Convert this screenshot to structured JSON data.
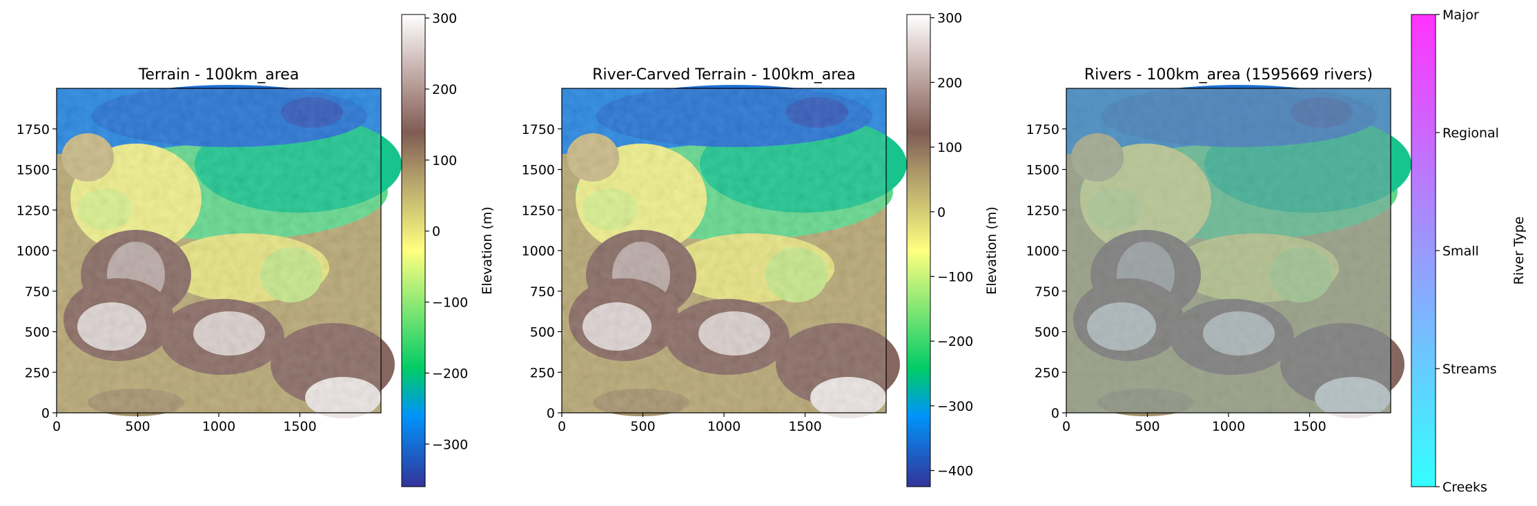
{
  "chart_data": [
    {
      "type": "heatmap",
      "title": "Terrain - 100km_area",
      "xlim": [
        0,
        2000
      ],
      "ylim": [
        0,
        2000
      ],
      "xticks": [
        0,
        500,
        1000,
        1500
      ],
      "yticks": [
        0,
        250,
        500,
        750,
        1000,
        1250,
        1500,
        1750
      ],
      "colormap": "terrain",
      "colorbar": {
        "label": "Elevation (m)",
        "range": [
          -360,
          305
        ],
        "ticks": [
          -300,
          -200,
          -100,
          0,
          100,
          200,
          300
        ]
      }
    },
    {
      "type": "heatmap",
      "title": "River-Carved Terrain - 100km_area",
      "xlim": [
        0,
        2000
      ],
      "ylim": [
        0,
        2000
      ],
      "xticks": [
        0,
        500,
        1000,
        1500
      ],
      "yticks": [
        0,
        250,
        500,
        750,
        1000,
        1250,
        1500,
        1750
      ],
      "colormap": "terrain",
      "colorbar": {
        "label": "Elevation (m)",
        "range": [
          -425,
          305
        ],
        "ticks": [
          -400,
          -300,
          -200,
          -100,
          0,
          100,
          200,
          300
        ]
      }
    },
    {
      "type": "heatmap",
      "title": "Rivers - 100km_area (1595669 rivers)",
      "xlim": [
        0,
        2000
      ],
      "ylim": [
        0,
        2000
      ],
      "xticks": [
        0,
        500,
        1000,
        1500
      ],
      "yticks": [
        0,
        250,
        500,
        750,
        1000,
        1250,
        1500,
        1750
      ],
      "colormap": "cool",
      "colorbar": {
        "label": "River Type",
        "ticks": [
          "Creeks",
          "Streams",
          "Small",
          "Regional",
          "Major"
        ]
      }
    }
  ],
  "colors": {
    "terrain_stops": [
      "#333399",
      "#0094fa",
      "#01cc66",
      "#ffff80",
      "#b4a26c",
      "#805c54",
      "#b69b96",
      "#ffffff"
    ],
    "cool_stops": [
      "#33ffff",
      "#ff33ff"
    ]
  }
}
